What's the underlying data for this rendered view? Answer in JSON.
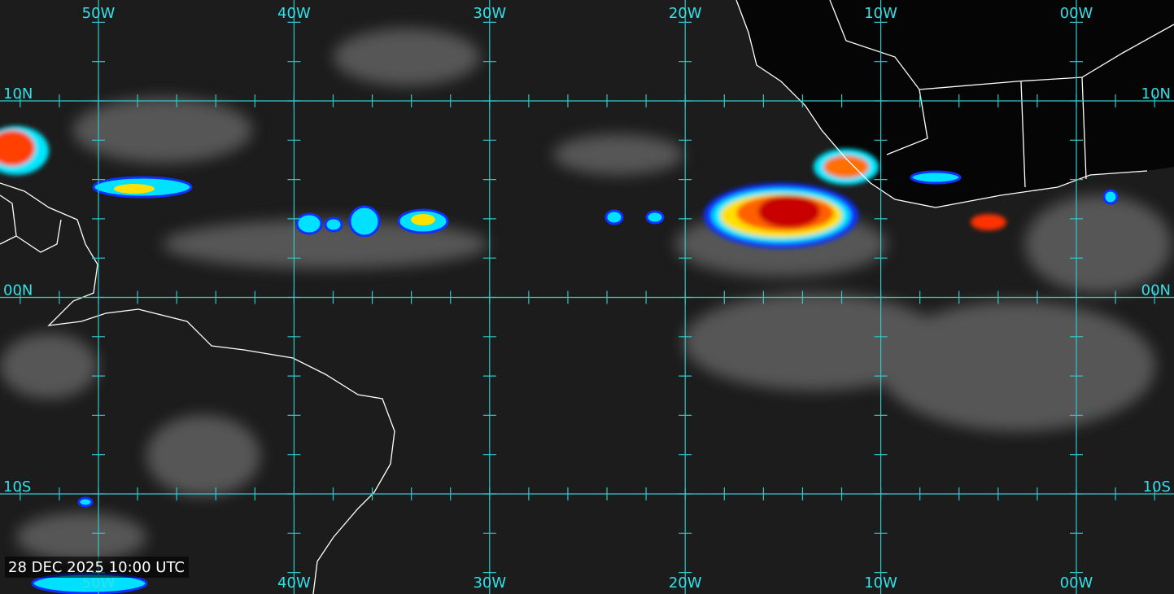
{
  "map": {
    "longitude_labels_top": [
      "50W",
      "40W",
      "30W",
      "20W",
      "10W",
      "00W"
    ],
    "longitude_labels_bottom": [
      "50W",
      "40W",
      "30W",
      "20W",
      "10W",
      "00W"
    ],
    "latitude_labels_left": [
      "10N",
      "00N",
      "10S"
    ],
    "latitude_labels_right": [
      "10N",
      "00N",
      "10S"
    ],
    "timestamp": "28 DEC 2025 10:00 UTC"
  }
}
